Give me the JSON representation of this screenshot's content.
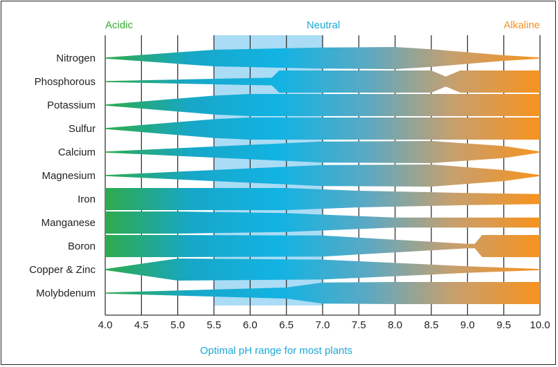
{
  "chart_data": {
    "type": "area",
    "title": "",
    "xlabel": "",
    "ylabel": "",
    "xlim": [
      4.0,
      10.0
    ],
    "x_ticks": [
      "4.0",
      "4.5",
      "5.0",
      "5.5",
      "6.0",
      "6.5",
      "7.0",
      "7.5",
      "8.0",
      "8.5",
      "9.0",
      "9.5",
      "10.0"
    ],
    "gridlines_vertical": true,
    "zones": {
      "acidic_label": "Acidic",
      "neutral_label": "Neutral",
      "alkaline_label": "Alkaline",
      "optimal_range": [
        5.5,
        7.0
      ],
      "optimal_caption": "Optimal pH range for most plants"
    },
    "colors": {
      "acidic": "#3aaa35",
      "neutral": "#1ba9d8",
      "alkaline": "#f39325",
      "optimal_band": "#aadcf5",
      "gradient_stops": [
        "#2eaa4c",
        "#17a7c9",
        "#12b3e3",
        "#5aa9c4",
        "#c79f6e",
        "#f7931e"
      ]
    },
    "series": [
      {
        "name": "Nitrogen",
        "profile": [
          [
            4.0,
            0.05
          ],
          [
            5.5,
            0.75
          ],
          [
            7.0,
            0.95
          ],
          [
            8.0,
            1.0
          ],
          [
            8.5,
            0.8
          ],
          [
            9.5,
            0.25
          ],
          [
            10.0,
            0.05
          ]
        ]
      },
      {
        "name": "Phosphorous",
        "profile": [
          [
            4.0,
            0.05
          ],
          [
            5.5,
            0.25
          ],
          [
            6.3,
            0.35
          ],
          [
            6.4,
            1.0
          ],
          [
            8.5,
            1.0
          ],
          [
            8.7,
            0.45
          ],
          [
            8.9,
            1.0
          ],
          [
            10.0,
            1.0
          ]
        ]
      },
      {
        "name": "Potassium",
        "profile": [
          [
            4.0,
            0.05
          ],
          [
            5.5,
            0.85
          ],
          [
            6.0,
            1.0
          ],
          [
            10.0,
            1.0
          ]
        ]
      },
      {
        "name": "Sulfur",
        "profile": [
          [
            4.0,
            0.05
          ],
          [
            5.5,
            0.85
          ],
          [
            6.0,
            1.0
          ],
          [
            10.0,
            1.0
          ]
        ]
      },
      {
        "name": "Calcium",
        "profile": [
          [
            4.0,
            0.05
          ],
          [
            5.0,
            0.35
          ],
          [
            7.0,
            0.95
          ],
          [
            8.5,
            1.0
          ],
          [
            9.5,
            0.55
          ],
          [
            10.0,
            0.05
          ]
        ]
      },
      {
        "name": "Magnesium",
        "profile": [
          [
            4.0,
            0.05
          ],
          [
            5.0,
            0.35
          ],
          [
            7.0,
            0.95
          ],
          [
            8.5,
            1.0
          ],
          [
            9.5,
            0.5
          ],
          [
            10.0,
            0.05
          ]
        ]
      },
      {
        "name": "Iron",
        "profile": [
          [
            4.0,
            1.0
          ],
          [
            6.5,
            1.0
          ],
          [
            7.5,
            0.75
          ],
          [
            9.0,
            0.55
          ],
          [
            10.0,
            0.45
          ]
        ]
      },
      {
        "name": "Manganese",
        "profile": [
          [
            4.0,
            1.0
          ],
          [
            5.0,
            1.0
          ],
          [
            6.5,
            0.85
          ],
          [
            8.0,
            0.45
          ],
          [
            10.0,
            0.45
          ]
        ]
      },
      {
        "name": "Boron",
        "profile": [
          [
            4.0,
            1.0
          ],
          [
            5.0,
            1.0
          ],
          [
            7.0,
            0.95
          ],
          [
            9.0,
            0.2
          ],
          [
            9.1,
            0.2
          ],
          [
            9.2,
            1.0
          ],
          [
            10.0,
            1.0
          ]
        ]
      },
      {
        "name": "Copper & Zinc",
        "profile": [
          [
            4.0,
            0.05
          ],
          [
            5.0,
            1.0
          ],
          [
            7.0,
            0.9
          ],
          [
            9.0,
            0.3
          ],
          [
            10.0,
            0.05
          ]
        ]
      },
      {
        "name": "Molybdenum",
        "profile": [
          [
            4.0,
            0.05
          ],
          [
            6.5,
            0.5
          ],
          [
            7.0,
            0.95
          ],
          [
            8.0,
            1.0
          ],
          [
            10.0,
            1.0
          ]
        ]
      }
    ]
  }
}
